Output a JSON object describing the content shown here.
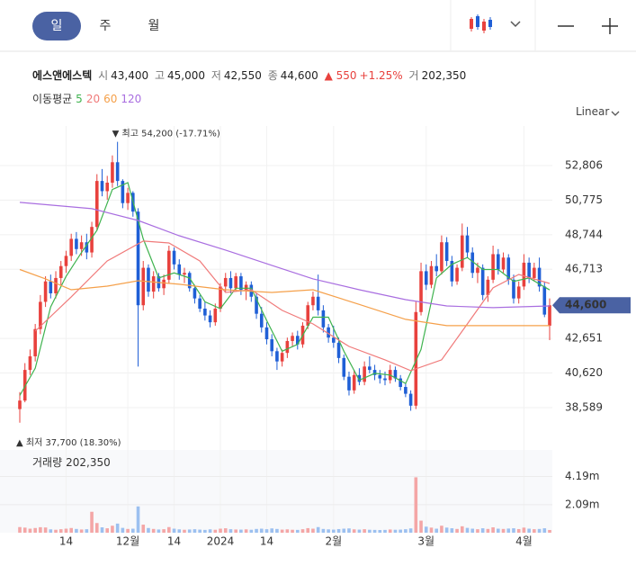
{
  "tabs": [
    "일",
    "주",
    "월"
  ],
  "header": {
    "name": "에스앤에스텍",
    "open_label": "시",
    "open": "43,400",
    "high_label": "고",
    "high": "45,000",
    "low_label": "저",
    "low": "42,550",
    "close_label": "종",
    "close": "44,600",
    "change": "▲ 550",
    "change_pct": "+1.25%",
    "volume_label": "거",
    "volume": "202,350"
  },
  "ma_title": "이동평균",
  "scale_mode": "Linear",
  "chart_data": {
    "type": "candlestick",
    "categories": [
      null,
      null,
      null,
      null,
      null,
      null,
      null,
      null,
      null,
      "14",
      null,
      null,
      null,
      null,
      null,
      null,
      null,
      null,
      null,
      null,
      null,
      "12월",
      null,
      null,
      null,
      null,
      null,
      null,
      null,
      null,
      "14",
      null,
      null,
      null,
      null,
      null,
      null,
      null,
      null,
      "2024",
      null,
      null,
      null,
      null,
      null,
      null,
      null,
      null,
      "14",
      null,
      null,
      null,
      null,
      null,
      null,
      null,
      null,
      null,
      null,
      null,
      null,
      "2월",
      null,
      null,
      null,
      null,
      null,
      null,
      null,
      null,
      null,
      null,
      null,
      null,
      null,
      null,
      null,
      null,
      null,
      "3월",
      null,
      null,
      null,
      null,
      null,
      null,
      null,
      null,
      null,
      null,
      null,
      null,
      null,
      null,
      null,
      null,
      null,
      null,
      "4월",
      null,
      null,
      null,
      null,
      null
    ],
    "open": [
      38500,
      39000,
      40800,
      41600,
      43200,
      44800,
      46000,
      45300,
      46200,
      46900,
      47500,
      48500,
      47900,
      48300,
      47700,
      49200,
      51900,
      51300,
      51800,
      53000,
      51900,
      50600,
      51200,
      50100,
      44600,
      46800,
      45400,
      46300,
      45600,
      46100,
      47800,
      47000,
      46400,
      46500,
      45600,
      45000,
      44400,
      44000,
      43600,
      44400,
      45700,
      46200,
      45600,
      46300,
      45500,
      45800,
      45100,
      44100,
      43300,
      42600,
      41900,
      41300,
      41800,
      42500,
      42800,
      42300,
      43400,
      44600,
      45100,
      44300,
      43300,
      42700,
      42400,
      41500,
      40400,
      39600,
      40500,
      40100,
      41000,
      40800,
      40500,
      40300,
      40200,
      40800,
      40300,
      39800,
      39400,
      38700,
      44200,
      46600,
      45800,
      46900,
      46600,
      48300,
      47200,
      46000,
      46800,
      48700,
      47700,
      46500,
      46800,
      45200,
      46100,
      47600,
      46700,
      47400,
      46100,
      45000,
      45700,
      47100,
      46200,
      46800,
      45700,
      43400
    ],
    "high": [
      39500,
      41200,
      42000,
      43500,
      45200,
      46300,
      46400,
      46600,
      47200,
      47800,
      48800,
      48900,
      48700,
      48800,
      49500,
      52300,
      52600,
      52200,
      53400,
      54200,
      52000,
      51500,
      51300,
      50300,
      47200,
      47000,
      46600,
      46500,
      46400,
      48100,
      48000,
      47300,
      46800,
      46600,
      45800,
      45200,
      44800,
      44300,
      44700,
      45900,
      46500,
      46600,
      46500,
      46500,
      46000,
      46000,
      45300,
      44500,
      43600,
      42900,
      42100,
      42000,
      42700,
      43000,
      43100,
      43600,
      44800,
      45400,
      46400,
      44600,
      43500,
      43400,
      42700,
      41700,
      40700,
      40800,
      40900,
      41300,
      41600,
      41100,
      40800,
      40700,
      41100,
      41000,
      40500,
      40000,
      39600,
      44800,
      47100,
      47000,
      47200,
      47600,
      48700,
      48600,
      47500,
      47000,
      49400,
      49200,
      48000,
      47100,
      47000,
      46300,
      48100,
      47900,
      47700,
      47600,
      46400,
      46000,
      47600,
      47400,
      47100,
      47400,
      46000,
      45000
    ],
    "low": [
      37700,
      38900,
      40500,
      41300,
      42900,
      44500,
      45000,
      45000,
      45800,
      46500,
      47200,
      47600,
      47500,
      47300,
      47400,
      49000,
      51000,
      50800,
      51500,
      51600,
      50300,
      50200,
      49800,
      41000,
      44300,
      45100,
      45000,
      45400,
      45200,
      45900,
      46700,
      46100,
      45900,
      45400,
      44700,
      44200,
      43700,
      43300,
      43400,
      44200,
      45400,
      45300,
      45400,
      45200,
      44900,
      44800,
      43800,
      43000,
      42300,
      41600,
      40800,
      41000,
      41500,
      42200,
      42000,
      42100,
      43200,
      44300,
      44000,
      43000,
      42400,
      42100,
      41200,
      40200,
      39300,
      39400,
      39900,
      39900,
      40600,
      40200,
      40000,
      39900,
      40000,
      40100,
      39600,
      39200,
      38400,
      38500,
      44000,
      45500,
      45600,
      46300,
      46400,
      46900,
      45700,
      45800,
      46600,
      47400,
      46200,
      45900,
      44900,
      44800,
      45900,
      46400,
      46500,
      45800,
      44700,
      44700,
      45500,
      45900,
      46000,
      45400,
      43900,
      42550
    ],
    "close": [
      39000,
      40800,
      41600,
      43200,
      44800,
      46000,
      45300,
      46200,
      46900,
      47500,
      48500,
      47900,
      48300,
      47700,
      49200,
      51900,
      51300,
      51800,
      53000,
      51900,
      50600,
      51200,
      50100,
      44600,
      46800,
      45400,
      46300,
      45600,
      46100,
      47800,
      47000,
      46400,
      46500,
      45600,
      45000,
      44400,
      44000,
      43600,
      44400,
      45700,
      46200,
      45600,
      46300,
      45500,
      45800,
      45100,
      44100,
      43300,
      42600,
      41900,
      41300,
      41800,
      42500,
      42800,
      42300,
      43400,
      44600,
      45100,
      44300,
      43300,
      42700,
      42400,
      41500,
      40400,
      39600,
      40500,
      40100,
      41000,
      40800,
      40500,
      40300,
      40200,
      40800,
      40300,
      39800,
      39400,
      38700,
      44200,
      46600,
      45800,
      46900,
      46600,
      48300,
      47200,
      46000,
      46800,
      48700,
      47700,
      46500,
      46800,
      45200,
      46100,
      47600,
      46700,
      47400,
      46100,
      45000,
      45700,
      47100,
      46200,
      46800,
      45700,
      44050,
      44600
    ],
    "up_color": "#e8413d",
    "down_color": "#1f5fd6",
    "ylim": [
      36630,
      55130
    ],
    "yticks": [
      {
        "value": 52806,
        "label": "52,806"
      },
      {
        "value": 50775,
        "label": "50,775"
      },
      {
        "value": 48744,
        "label": "48,744"
      },
      {
        "value": 46713,
        "label": "46,713"
      },
      {
        "value": 42651,
        "label": "42,651"
      },
      {
        "value": 40620,
        "label": "40,620"
      },
      {
        "value": 38589,
        "label": "38,589"
      }
    ],
    "grid": true,
    "series": [
      {
        "name": "5",
        "color": "#3fb34f",
        "x": [
          0,
          3,
          6,
          9,
          12,
          15,
          18,
          21,
          24,
          27,
          30,
          33,
          36,
          39,
          42,
          45,
          48,
          51,
          54,
          57,
          60,
          63,
          66,
          69,
          72,
          75,
          78,
          81,
          84,
          87,
          90,
          93,
          96,
          99,
          103
        ],
        "values": [
          39300,
          40900,
          44500,
          46300,
          47700,
          49000,
          51400,
          51800,
          48500,
          46200,
          46500,
          46200,
          44800,
          44400,
          45600,
          45600,
          43700,
          41900,
          42300,
          43900,
          43900,
          41900,
          40200,
          40600,
          40500,
          40000,
          42000,
          46200,
          47000,
          47400,
          46700,
          46700,
          46000,
          46200,
          45500
        ]
      },
      {
        "name": "20",
        "color": "#f07a7a",
        "x": [
          3,
          10,
          17,
          24,
          29,
          35,
          40,
          45,
          51,
          57,
          64,
          71,
          76,
          82,
          87,
          92,
          97,
          103
        ],
        "values": [
          43080,
          45090,
          47200,
          48370,
          48260,
          47200,
          45350,
          45510,
          44300,
          43500,
          42180,
          41390,
          40760,
          41390,
          43500,
          45620,
          46410,
          45880
        ]
      },
      {
        "name": "60",
        "color": "#f5a04a",
        "x": [
          0,
          5,
          10,
          17,
          23,
          31,
          40,
          49,
          57,
          66,
          75,
          83,
          92,
          103
        ],
        "values": [
          46700,
          46150,
          45510,
          45720,
          46040,
          45830,
          45510,
          45350,
          45510,
          44650,
          43770,
          43400,
          43400,
          43400
        ]
      },
      {
        "name": "120",
        "color": "#a96ee0",
        "x": [
          0,
          14,
          23,
          31,
          40,
          49,
          57,
          66,
          75,
          83,
          92,
          103
        ],
        "values": [
          50640,
          50270,
          49580,
          48680,
          47840,
          46940,
          46150,
          45510,
          44930,
          44560,
          44460,
          44560
        ]
      }
    ],
    "high_note": "▼ 최고 54,200 (-17.71%)",
    "low_note": "▲ 최저 37,700 (18.30%)",
    "price_tag": {
      "value": 44600,
      "label": "44,600"
    },
    "volume": {
      "title": "거래량",
      "current": "202,350",
      "ylim": [
        0,
        6170000
      ],
      "yticks": [
        {
          "value": 4190000,
          "label": "4.19m"
        },
        {
          "value": 2090000,
          "label": "2.09m"
        }
      ],
      "up_color": "#f4a6a6",
      "down_color": "#9cc0f0",
      "values": [
        420000,
        380000,
        300000,
        350000,
        410000,
        390000,
        250000,
        220000,
        260000,
        300000,
        350000,
        280000,
        240000,
        260000,
        1560000,
        720000,
        400000,
        330000,
        520000,
        680000,
        360000,
        280000,
        300000,
        1960000,
        600000,
        350000,
        280000,
        240000,
        260000,
        420000,
        300000,
        250000,
        220000,
        240000,
        260000,
        230000,
        210000,
        250000,
        220000,
        300000,
        330000,
        260000,
        240000,
        230000,
        250000,
        220000,
        280000,
        300000,
        260000,
        320000,
        280000,
        230000,
        250000,
        220000,
        210000,
        260000,
        340000,
        300000,
        420000,
        280000,
        250000,
        230000,
        270000,
        300000,
        320000,
        250000,
        230000,
        260000,
        220000,
        210000,
        200000,
        210000,
        240000,
        220000,
        230000,
        260000,
        320000,
        4130000,
        900000,
        450000,
        380000,
        300000,
        520000,
        380000,
        330000,
        280000,
        480000,
        360000,
        300000,
        260000,
        330000,
        280000,
        400000,
        300000,
        280000,
        310000,
        330000,
        270000,
        380000,
        300000,
        260000,
        280000,
        330000,
        202350
      ]
    }
  }
}
